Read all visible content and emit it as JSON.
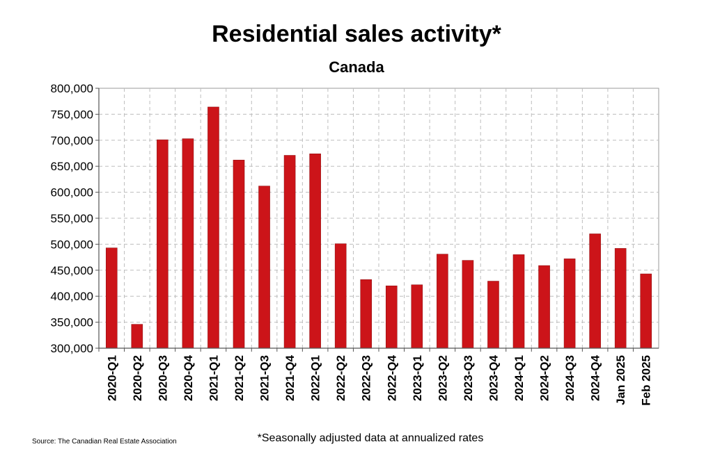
{
  "chart_data": {
    "type": "bar",
    "title": "Residential sales activity*",
    "subtitle": "Canada",
    "categories": [
      "2020-Q1",
      "2020-Q2",
      "2020-Q3",
      "2020-Q4",
      "2021-Q1",
      "2021-Q2",
      "2021-Q3",
      "2021-Q4",
      "2022-Q1",
      "2022-Q2",
      "2022-Q3",
      "2022-Q4",
      "2023-Q1",
      "2023-Q2",
      "2023-Q3",
      "2023-Q4",
      "2024-Q1",
      "2024-Q2",
      "2024-Q3",
      "2024-Q4",
      "Jan 2025",
      "Feb 2025"
    ],
    "values": [
      493000,
      346000,
      701000,
      703000,
      764000,
      662000,
      612000,
      671000,
      674000,
      501000,
      432000,
      420000,
      422000,
      481000,
      469000,
      429000,
      480000,
      459000,
      472000,
      520000,
      492000,
      443000
    ],
    "ylim": [
      300000,
      800000
    ],
    "yticks": [
      300000,
      350000,
      400000,
      450000,
      500000,
      550000,
      600000,
      650000,
      700000,
      750000,
      800000
    ],
    "ytick_labels": [
      "300,000",
      "350,000",
      "400,000",
      "450,000",
      "500,000",
      "550,000",
      "600,000",
      "650,000",
      "700,000",
      "750,000",
      "800,000"
    ],
    "grid": true,
    "bar_color": "#cc1419",
    "xlabel": "",
    "ylabel": ""
  },
  "source": "Source: The Canadian Real Estate Association",
  "footnote": "*Seasonally adjusted data at annualized rates"
}
